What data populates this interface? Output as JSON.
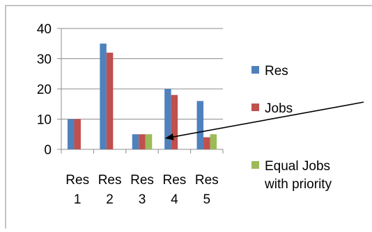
{
  "chart_data": {
    "type": "bar",
    "categories": [
      [
        "Res",
        "1"
      ],
      [
        "Res",
        "2"
      ],
      [
        "Res",
        "3"
      ],
      [
        "Res",
        "4"
      ],
      [
        "Res",
        "5"
      ]
    ],
    "yticks": [
      "0",
      "10",
      "20",
      "30",
      "40"
    ],
    "ylim": [
      0,
      40
    ],
    "grid": true,
    "legend_position": "right",
    "series": [
      {
        "name": "Res",
        "color": "#4F81BD",
        "values": [
          10,
          35,
          5,
          20,
          16
        ]
      },
      {
        "name": "Jobs",
        "color": "#C0504D",
        "values": [
          10,
          32,
          5,
          18,
          4
        ]
      },
      {
        "name": "Equal Jobs with priority",
        "label_lines": [
          "Equal Jobs",
          "with priority"
        ],
        "color": "#9BBB59",
        "values": [
          0,
          0,
          5,
          0,
          5
        ]
      }
    ],
    "annotation": {
      "type": "arrow",
      "points_to_category": "Res 4",
      "points_to_value": 4
    }
  }
}
